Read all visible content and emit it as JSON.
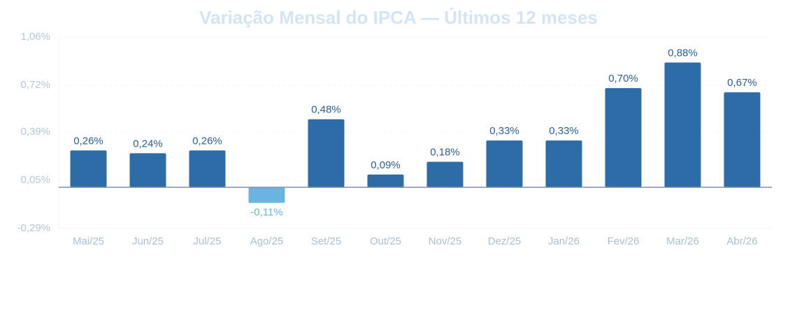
{
  "chart_data": {
    "type": "bar",
    "title": "Variação Mensal do IPCA — Últimos 12 meses",
    "categories": [
      "Mai/25",
      "Jun/25",
      "Jul/25",
      "Ago/25",
      "Set/25",
      "Out/25",
      "Nov/25",
      "Dez/25",
      "Jan/26",
      "Fev/26",
      "Mar/26",
      "Abr/26"
    ],
    "values": [
      0.26,
      0.24,
      0.26,
      -0.11,
      0.48,
      0.09,
      0.18,
      0.33,
      0.33,
      0.7,
      0.88,
      0.67
    ],
    "value_labels": [
      "0,26%",
      "0,24%",
      "0,26%",
      "-0,11%",
      "0,48%",
      "0,09%",
      "0,18%",
      "0,33%",
      "0,33%",
      "0,70%",
      "0,88%",
      "0,67%"
    ],
    "color": "#2e6ca8",
    "negative_color": "#6cb4e0",
    "ylim": [
      -0.29,
      1.06
    ],
    "yticks": [
      {
        "value": 1.06,
        "label": "1,06%"
      },
      {
        "value": 0.72,
        "label": "0,72%"
      },
      {
        "value": 0.39,
        "label": "0,39%"
      },
      {
        "value": 0.05,
        "label": "0,05%"
      },
      {
        "value": -0.29,
        "label": "-0,29%"
      }
    ],
    "grid": true
  }
}
